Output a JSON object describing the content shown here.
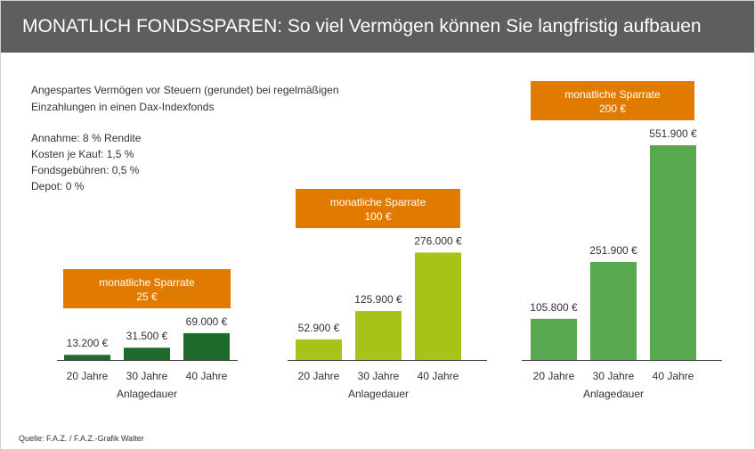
{
  "header": {
    "title": "MONATLICH FONDSSPAREN: So viel Vermögen können Sie langfristig aufbauen"
  },
  "description": {
    "line1": "Angespartes Vermögen vor Steuern (gerundet) bei regelmäßigen",
    "line2": "Einzahlungen in einen Dax-Indexfonds"
  },
  "assumptions": [
    "Annahme: 8 % Rendite",
    "Kosten je Kauf: 1,5 %",
    "Fondsgebühren: 0,5 %",
    "Depot: 0 %"
  ],
  "source": "Quelle: F.A.Z. / F.A.Z.-Grafik Walter",
  "colors": {
    "header": "#5e5e5e",
    "box": "#e07b00",
    "axis": "#444444"
  },
  "chart_data": {
    "type": "bar",
    "categories": [
      "20 Jahre",
      "30 Jahre",
      "40 Jahre"
    ],
    "xlabel": "Anlagedauer",
    "groups": [
      {
        "box_title": "monatliche Sparrate",
        "box_amount": "25 €",
        "color": "#1e6b2e",
        "values": [
          13200,
          31500,
          69000
        ],
        "labels": [
          "13.200 €",
          "31.500 €",
          "69.000 €"
        ]
      },
      {
        "box_title": "monatliche Sparrate",
        "box_amount": "100 €",
        "color": "#a6c31a",
        "values": [
          52900,
          125900,
          276000
        ],
        "labels": [
          "52.900 €",
          "125.900 €",
          "276.000 €"
        ]
      },
      {
        "box_title": "monatliche Sparrate",
        "box_amount": "200 €",
        "color": "#57a84e",
        "values": [
          105800,
          251900,
          551900
        ],
        "labels": [
          "105.800 €",
          "251.900 €",
          "551.900 €"
        ]
      }
    ]
  }
}
